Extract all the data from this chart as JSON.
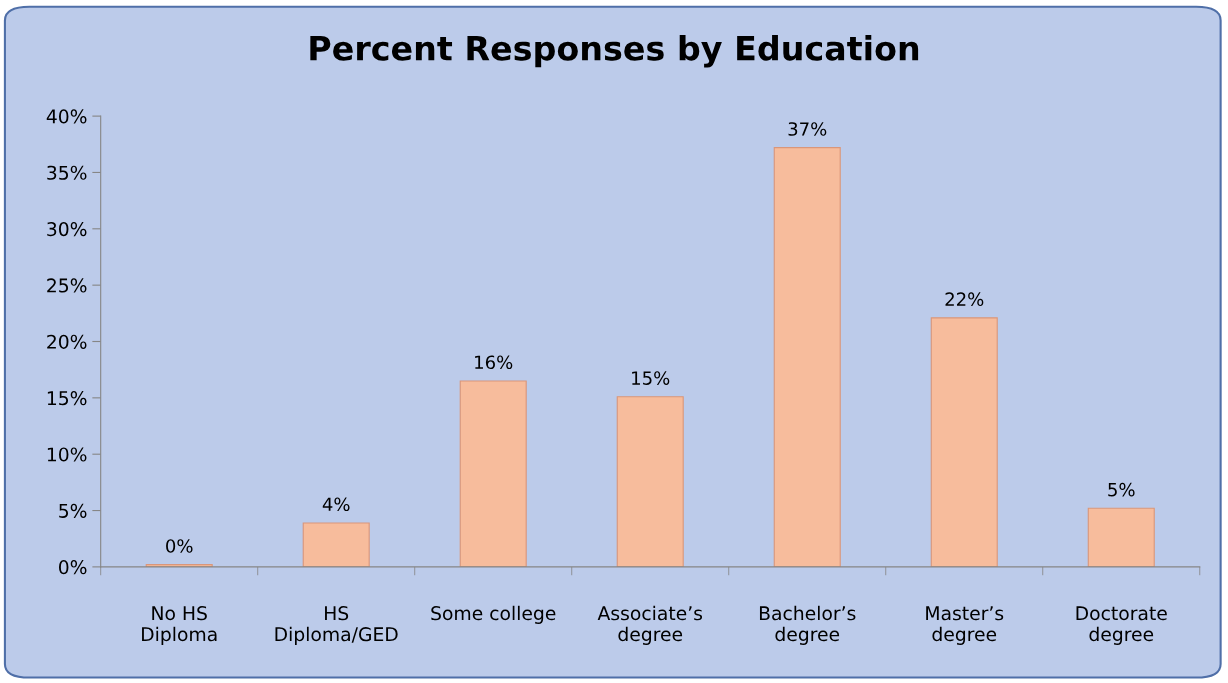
{
  "chart_data": {
    "type": "bar",
    "title": "Percent Responses by Education",
    "categories": [
      "No HS\nDiploma",
      "HS\nDiploma/GED",
      "Some college",
      "Associate’s\ndegree",
      "Bachelor’s\ndegree",
      "Master’s\ndegree",
      "Doctorate\ndegree"
    ],
    "values": [
      0.2,
      3.9,
      16.5,
      15.1,
      37.2,
      22.1,
      5.2
    ],
    "value_labels": [
      "0%",
      "4%",
      "16%",
      "15%",
      "37%",
      "22%",
      "5%"
    ],
    "color": "#f7bc9c",
    "ylim": [
      0,
      40
    ],
    "yticks": [
      {
        "value": 0,
        "label": "0%"
      },
      {
        "value": 5,
        "label": "5%"
      },
      {
        "value": 10,
        "label": "10%"
      },
      {
        "value": 15,
        "label": "15%"
      },
      {
        "value": 20,
        "label": "20%"
      },
      {
        "value": 25,
        "label": "25%"
      },
      {
        "value": 30,
        "label": "30%"
      },
      {
        "value": 35,
        "label": "35%"
      },
      {
        "value": 40,
        "label": "40%"
      }
    ],
    "grid": false,
    "legend": false
  }
}
